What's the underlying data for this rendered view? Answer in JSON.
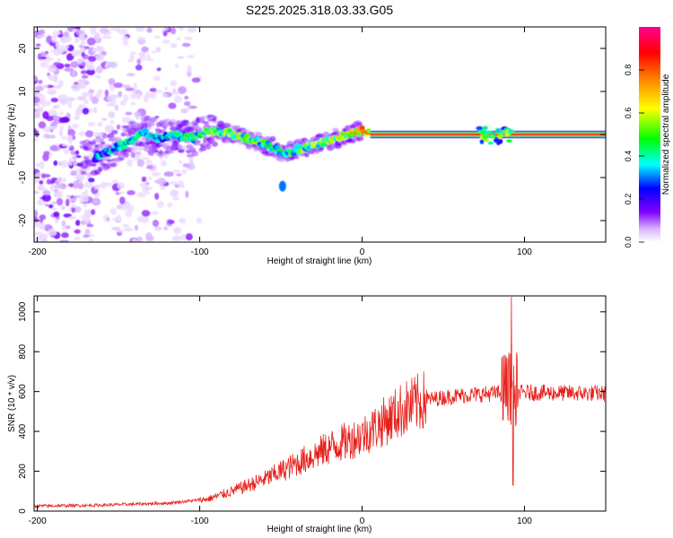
{
  "title": "S225.2025.318.03.33.G05",
  "chart_data": [
    {
      "type": "heatmap",
      "title": "",
      "xlabel": "Height of straight line (km)",
      "ylabel": "Frequency (Hz)",
      "xlim": [
        -202,
        150
      ],
      "ylim": [
        -25,
        25
      ],
      "xticks": [
        -200,
        -100,
        0,
        100
      ],
      "yticks": [
        -20,
        -10,
        0,
        10,
        20
      ],
      "colorbar": {
        "label": "Normalized spectral amplitude",
        "range": [
          0,
          1
        ],
        "ticks": [
          0.0,
          0.2,
          0.4,
          0.6,
          0.8
        ],
        "tick_labels": [
          "0.0",
          "0.2",
          "0.4",
          "0.6",
          "0.8"
        ],
        "colors": [
          "#ffffff",
          "#d9b8ff",
          "#8000ff",
          "#0000ff",
          "#00ffff",
          "#00ff00",
          "#ffff00",
          "#ff8000",
          "#ff0000",
          "#ff0090"
        ]
      },
      "ridge": [
        {
          "x": -165,
          "y": -5.5,
          "a": 0.35
        },
        {
          "x": -155,
          "y": -3.5,
          "a": 0.4
        },
        {
          "x": -145,
          "y": -2.0,
          "a": 0.42
        },
        {
          "x": -135,
          "y": 0.5,
          "a": 0.4
        },
        {
          "x": -125,
          "y": -1.0,
          "a": 0.38
        },
        {
          "x": -115,
          "y": 0.0,
          "a": 0.4
        },
        {
          "x": -105,
          "y": -1.0,
          "a": 0.45
        },
        {
          "x": -95,
          "y": 1.0,
          "a": 0.5
        },
        {
          "x": -85,
          "y": 0.5,
          "a": 0.55
        },
        {
          "x": -75,
          "y": -0.5,
          "a": 0.55
        },
        {
          "x": -65,
          "y": -1.5,
          "a": 0.5
        },
        {
          "x": -55,
          "y": -3.0,
          "a": 0.45
        },
        {
          "x": -48,
          "y": -4.5,
          "a": 0.45
        },
        {
          "x": -40,
          "y": -3.5,
          "a": 0.5
        },
        {
          "x": -30,
          "y": -2.5,
          "a": 0.55
        },
        {
          "x": -20,
          "y": -1.5,
          "a": 0.6
        },
        {
          "x": -10,
          "y": 0.0,
          "a": 0.7
        },
        {
          "x": 0,
          "y": 1.0,
          "a": 0.8
        },
        {
          "x": 10,
          "y": 0.0,
          "a": 0.9
        },
        {
          "x": 30,
          "y": 0.0,
          "a": 0.9
        },
        {
          "x": 60,
          "y": 0.0,
          "a": 0.9
        },
        {
          "x": 90,
          "y": 0.0,
          "a": 0.9
        },
        {
          "x": 120,
          "y": 0.0,
          "a": 0.92
        },
        {
          "x": 150,
          "y": 0.0,
          "a": 0.92
        }
      ],
      "outlier": {
        "x": -49,
        "y": -12,
        "a": 0.3
      }
    },
    {
      "type": "line",
      "title": "",
      "xlabel": "Height of straight line (km)",
      "ylabel": "SNR (10 * v/v)",
      "xlim": [
        -202,
        150
      ],
      "ylim": [
        0,
        1080
      ],
      "xticks": [
        -200,
        -100,
        0,
        100
      ],
      "yticks": [
        0,
        200,
        400,
        600,
        800,
        1000
      ],
      "series": [
        {
          "color": "#e8211b",
          "trend": [
            {
              "x": -202,
              "y": 25
            },
            {
              "x": -160,
              "y": 30
            },
            {
              "x": -120,
              "y": 40
            },
            {
              "x": -95,
              "y": 60
            },
            {
              "x": -80,
              "y": 100
            },
            {
              "x": -60,
              "y": 160
            },
            {
              "x": -40,
              "y": 240
            },
            {
              "x": -20,
              "y": 320
            },
            {
              "x": 0,
              "y": 380
            },
            {
              "x": 10,
              "y": 430
            },
            {
              "x": 25,
              "y": 510
            },
            {
              "x": 40,
              "y": 560
            },
            {
              "x": 60,
              "y": 580
            },
            {
              "x": 80,
              "y": 590
            },
            {
              "x": 100,
              "y": 595
            },
            {
              "x": 150,
              "y": 590
            }
          ],
          "spike_max": {
            "x": 92,
            "y": 1075
          },
          "spike_min": {
            "x": 93,
            "y": 130
          }
        }
      ]
    }
  ]
}
